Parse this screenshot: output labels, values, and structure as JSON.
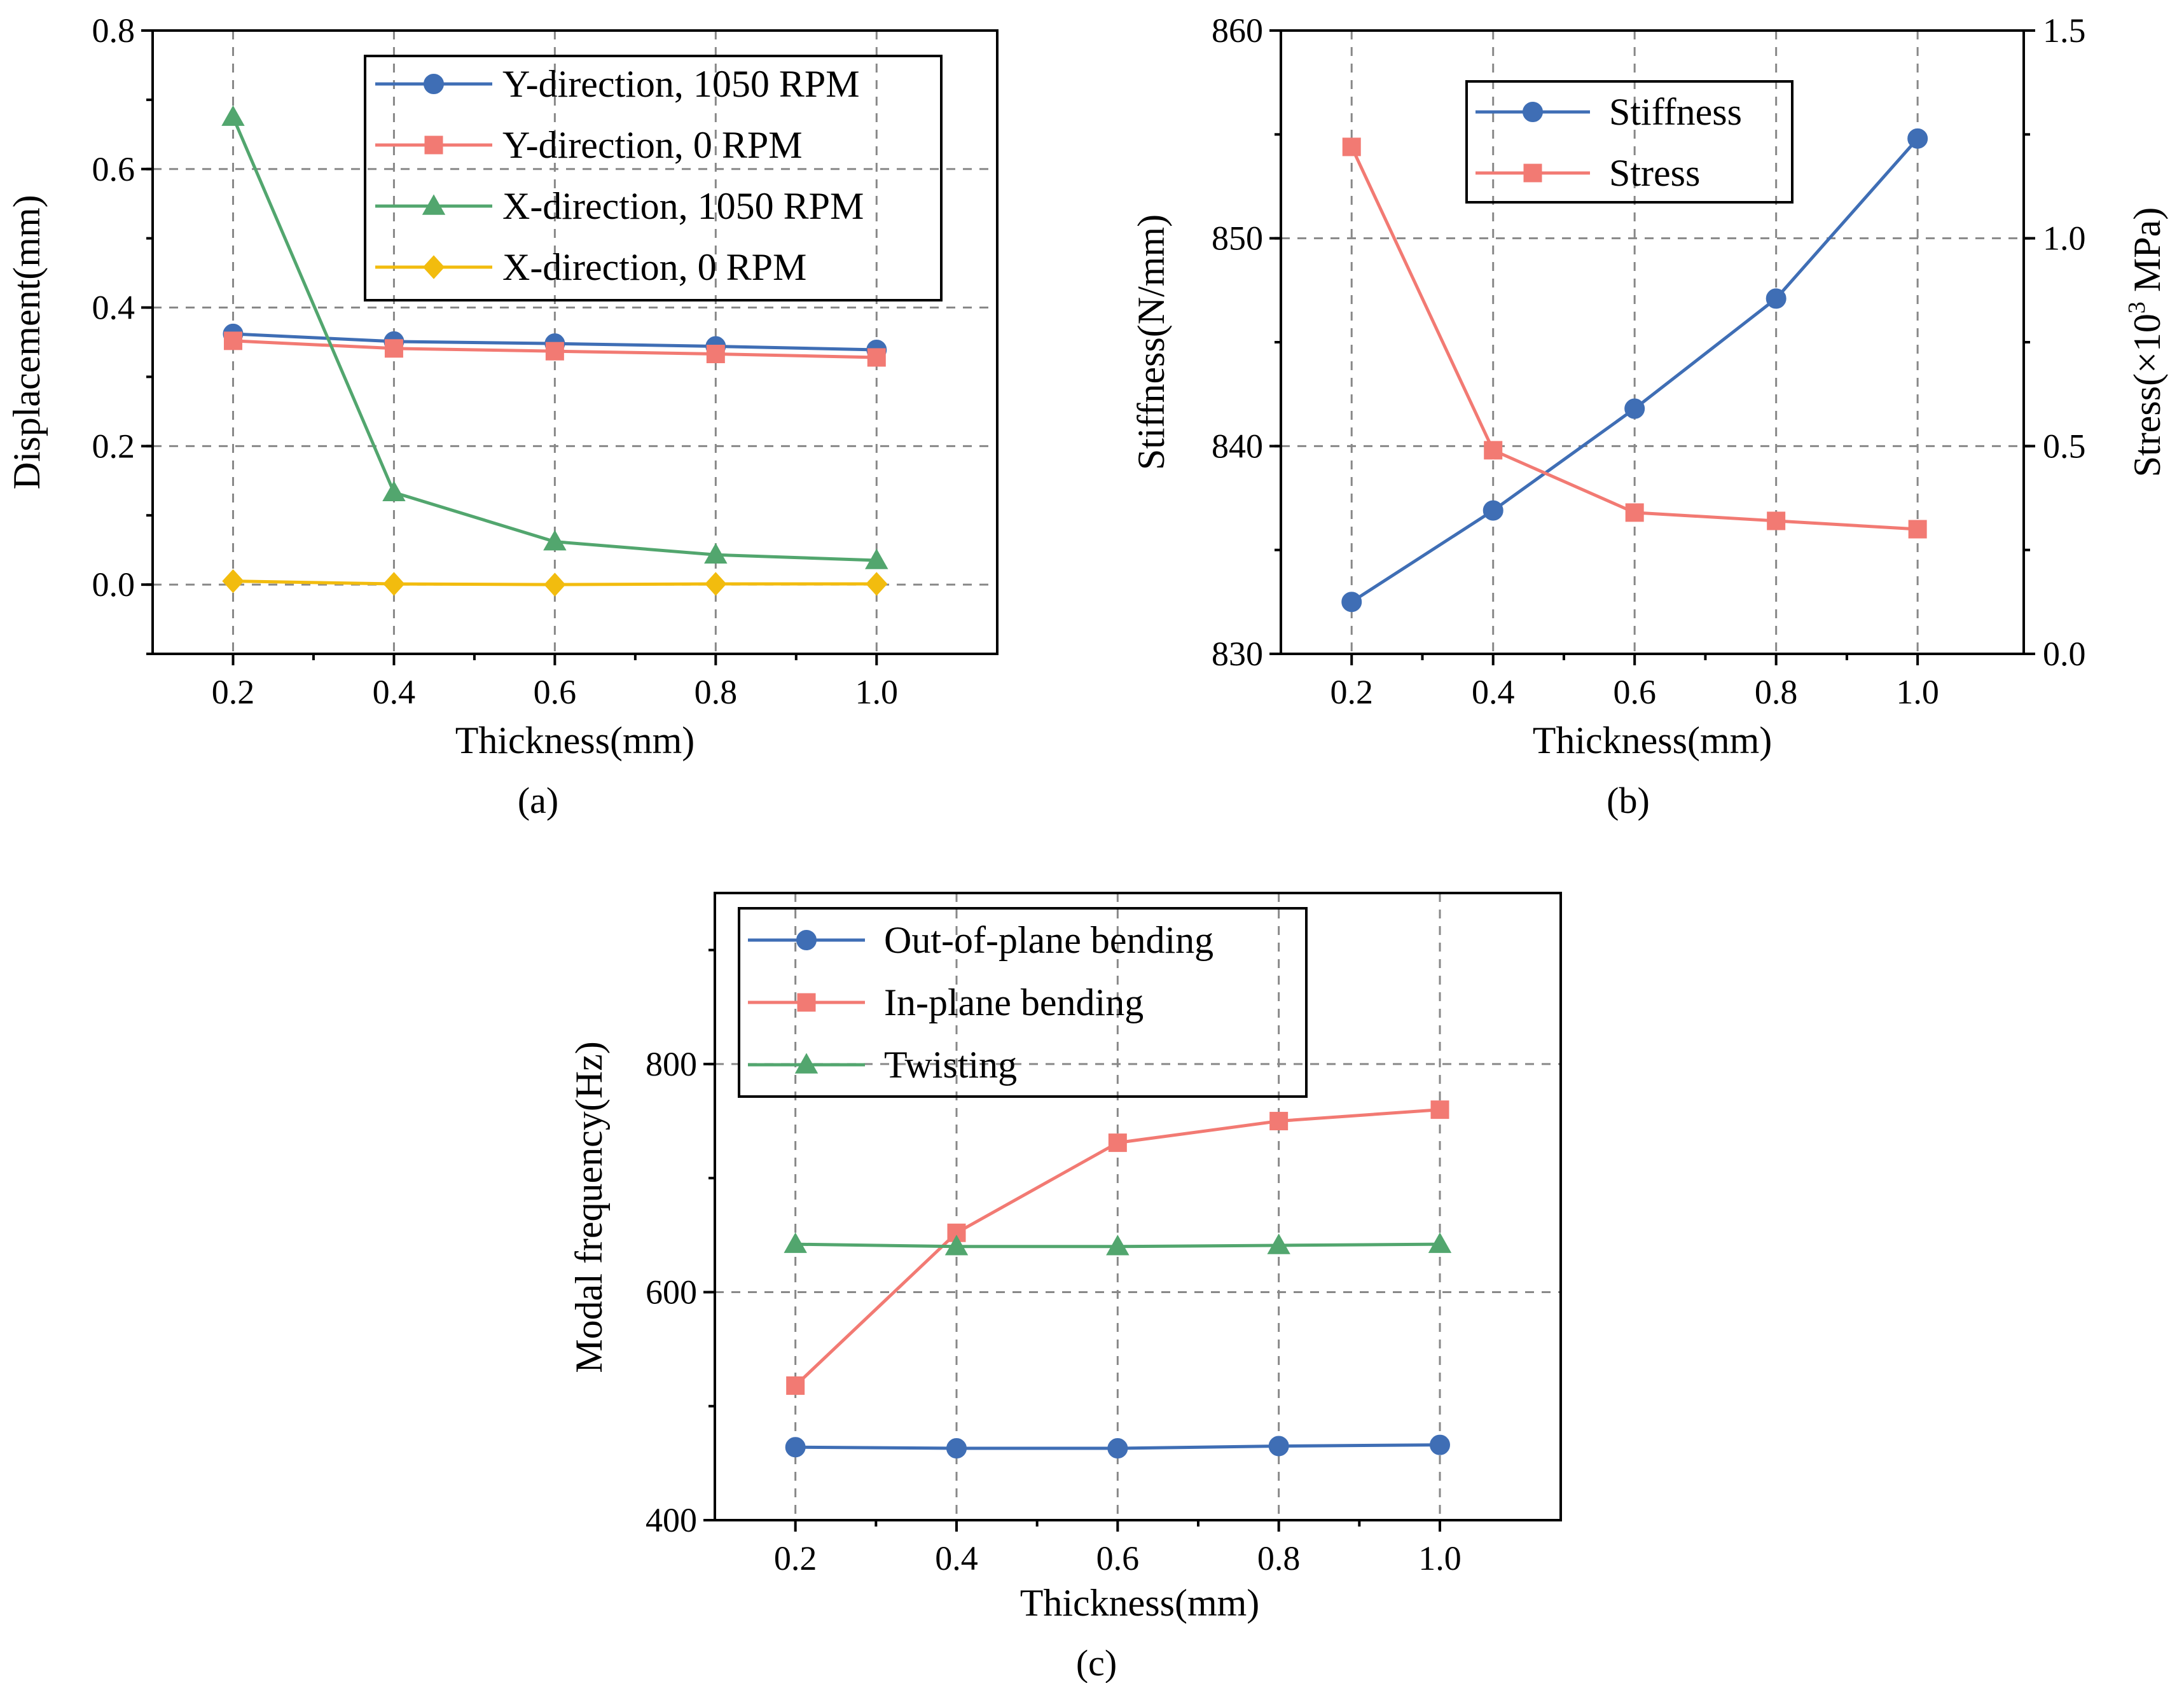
{
  "chart_data": [
    {
      "type": "line",
      "caption": "(a)",
      "xlabel": "Thickness(mm)",
      "ylabel": "Displacement(mm)",
      "xlim": [
        0.1,
        1.15
      ],
      "ylim": [
        -0.1,
        0.8
      ],
      "xticks": [
        "0.2",
        "0.4",
        "0.6",
        "0.8",
        "1.0"
      ],
      "yticks": [
        "0.0",
        "0.2",
        "0.4",
        "0.6",
        "0.8"
      ],
      "x": [
        0.2,
        0.4,
        0.6,
        0.8,
        1.0
      ],
      "legend_position": "top-right",
      "series": [
        {
          "name": "Y-direction, 1050 RPM",
          "marker": "circle",
          "color": "#3f6eb5",
          "values": [
            0.362,
            0.351,
            0.348,
            0.344,
            0.339
          ]
        },
        {
          "name": "Y-direction, 0 RPM",
          "marker": "square",
          "color": "#f27a73",
          "values": [
            0.352,
            0.341,
            0.337,
            0.333,
            0.328
          ]
        },
        {
          "name": "X-direction, 1050 RPM",
          "marker": "triangle",
          "color": "#52a66e",
          "values": [
            0.675,
            0.133,
            0.062,
            0.043,
            0.035
          ]
        },
        {
          "name": "X-direction, 0 RPM",
          "marker": "diamond",
          "color": "#f2bc0e",
          "values": [
            0.005,
            0.001,
            0.0,
            0.001,
            0.001
          ]
        }
      ]
    },
    {
      "type": "line",
      "caption": "(b)",
      "xlabel": "Thickness(mm)",
      "ylabel": "Stiffness(N/mm)",
      "ylabel_right": "Stress(×10",
      "ylabel_right_sup": "3",
      "ylabel_right_unit": " MPa)",
      "xlim": [
        0.1,
        1.15
      ],
      "ylim": [
        830,
        860
      ],
      "ylim_right": [
        0,
        1.5
      ],
      "xticks": [
        "0.2",
        "0.4",
        "0.6",
        "0.8",
        "1.0"
      ],
      "yticks": [
        "830",
        "840",
        "850",
        "860"
      ],
      "yticks_right": [
        "0.0",
        "0.5",
        "1.0",
        "1.5"
      ],
      "x": [
        0.2,
        0.4,
        0.6,
        0.8,
        1.0
      ],
      "legend_position": "top-left",
      "series": [
        {
          "name": "Stiffness",
          "axis": "left",
          "marker": "circle",
          "color": "#3f6eb5",
          "values": [
            832.5,
            836.9,
            841.8,
            847.1,
            854.8
          ]
        },
        {
          "name": "Stress",
          "axis": "right",
          "marker": "square",
          "color": "#f27a73",
          "values": [
            1.22,
            0.49,
            0.34,
            0.32,
            0.3
          ]
        }
      ]
    },
    {
      "type": "line",
      "caption": "(c)",
      "xlabel": "Thickness(mm)",
      "ylabel": "Modal frequency(Hz)",
      "xlim": [
        0.1,
        1.15
      ],
      "ylim": [
        400,
        950
      ],
      "xticks": [
        "0.2",
        "0.4",
        "0.6",
        "0.8",
        "1.0"
      ],
      "yticks": [
        "400",
        "600",
        "800"
      ],
      "x": [
        0.2,
        0.4,
        0.6,
        0.8,
        1.0
      ],
      "legend_position": "top-left",
      "series": [
        {
          "name": "Out-of-plane bending",
          "marker": "circle",
          "color": "#3f6eb5",
          "values": [
            464,
            463,
            463,
            465,
            466
          ]
        },
        {
          "name": "In-plane bending",
          "marker": "square",
          "color": "#f27a73",
          "values": [
            518,
            652,
            731,
            750,
            760
          ]
        },
        {
          "name": "Twisting",
          "marker": "triangle",
          "color": "#52a66e",
          "values": [
            642,
            640,
            640,
            641,
            642
          ]
        }
      ]
    }
  ]
}
